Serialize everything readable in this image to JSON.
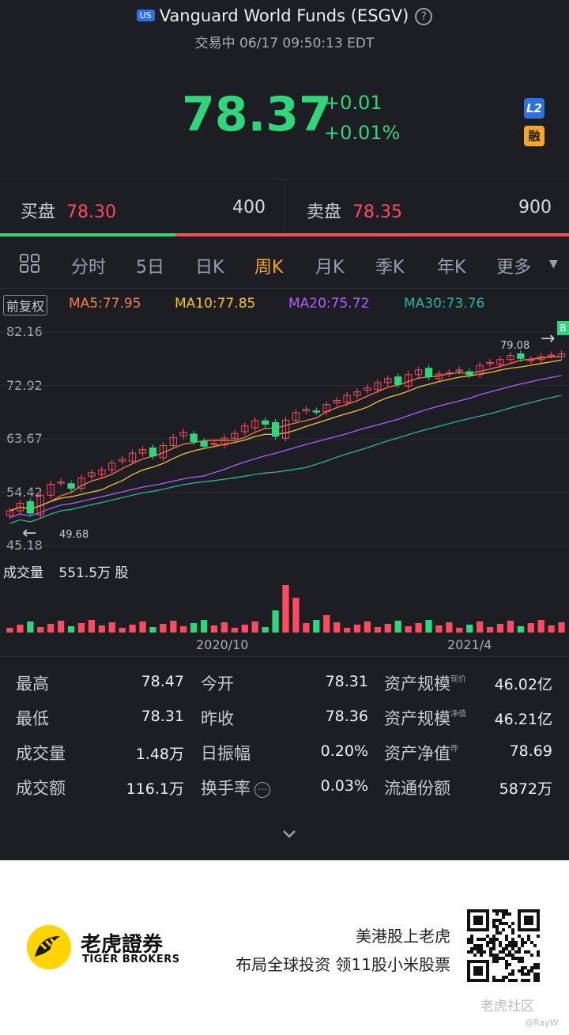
{
  "header": {
    "market_badge": "US",
    "title": "Vanguard World Funds (ESGV)",
    "status_line": "交易中 06/17 09:50:13 EDT"
  },
  "quote": {
    "price": "78.37",
    "change": "+0.01",
    "change_pct": "+0.01%",
    "level_badge": "L2",
    "margin_badge": "融"
  },
  "order_book": {
    "bid_label": "买盘",
    "bid_price": "78.30",
    "bid_qty": "400",
    "ask_label": "卖盘",
    "ask_price": "78.35",
    "ask_qty": "900"
  },
  "tabs": [
    "分时",
    "5日",
    "日K",
    "周K",
    "月K",
    "季K",
    "年K",
    "更多"
  ],
  "active_tab": "周K",
  "indicators": {
    "adjust": "前复权",
    "ma5": "MA5:77.95",
    "ma10": "MA10:77.85",
    "ma20": "MA20:75.72",
    "ma30": "MA30:73.76"
  },
  "colors": {
    "up": "#ff4a60",
    "down": "#2fd67a",
    "ma5": "#ff7a45",
    "ma10": "#f5c518",
    "ma20": "#b45cff",
    "ma30": "#1fb89a",
    "accent": "#f5a623"
  },
  "chart_data": {
    "type": "candlestick",
    "y_ticks": [
      "82.16",
      "72.92",
      "63.67",
      "54.42",
      "45.18"
    ],
    "ylim": [
      45.18,
      82.16
    ],
    "x_ticks": [
      "2020/10",
      "2021/4"
    ],
    "max_label": "79.08",
    "min_label": "49.68",
    "volume_label": "成交量",
    "volume_value": "551.5万 股",
    "closes": [
      51.2,
      52.5,
      50.8,
      53.9,
      55.8,
      56.2,
      55.1,
      56.9,
      57.8,
      58.3,
      59.5,
      60.1,
      61.2,
      61.8,
      60.7,
      62.5,
      63.9,
      64.8,
      63.2,
      62.4,
      62.9,
      63.8,
      64.6,
      65.9,
      66.8,
      66.2,
      64.1,
      66.9,
      68.2,
      68.8,
      68.4,
      69.6,
      70.3,
      71.2,
      71.8,
      72.5,
      73.4,
      74.1,
      73.1,
      74.8,
      75.6,
      74.4,
      74.9,
      75.1,
      75.6,
      74.8,
      76.4,
      76.9,
      77.4,
      78.1,
      77.6,
      77.4,
      77.9,
      78.2,
      78.37
    ]
  },
  "stats": [
    {
      "k": "最高",
      "v": "78.47"
    },
    {
      "k": "今开",
      "v": "78.31"
    },
    {
      "k": "资产规模",
      "sup": "现价",
      "v": "46.02亿"
    },
    {
      "k": "最低",
      "v": "78.31"
    },
    {
      "k": "昨收",
      "v": "78.36"
    },
    {
      "k": "资产规模",
      "sup": "净值",
      "v": "46.21亿"
    },
    {
      "k": "成交量",
      "v": "1.48万"
    },
    {
      "k": "日振幅",
      "v": "0.20%"
    },
    {
      "k": "资产净值",
      "sup": "昨",
      "v": "78.69"
    },
    {
      "k": "成交额",
      "v": "116.1万"
    },
    {
      "k": "换手率",
      "v": "0.03%"
    },
    {
      "k": "流通份额",
      "v": "5872万"
    }
  ],
  "footer": {
    "brand_cn": "老虎證券",
    "brand_en": "TIGER BROKERS",
    "promo_1": "美港股上老虎",
    "promo_2": "布局全球投资 领11股小米股票",
    "watermark": "老虎社区",
    "watermark_user": "@RayW"
  }
}
